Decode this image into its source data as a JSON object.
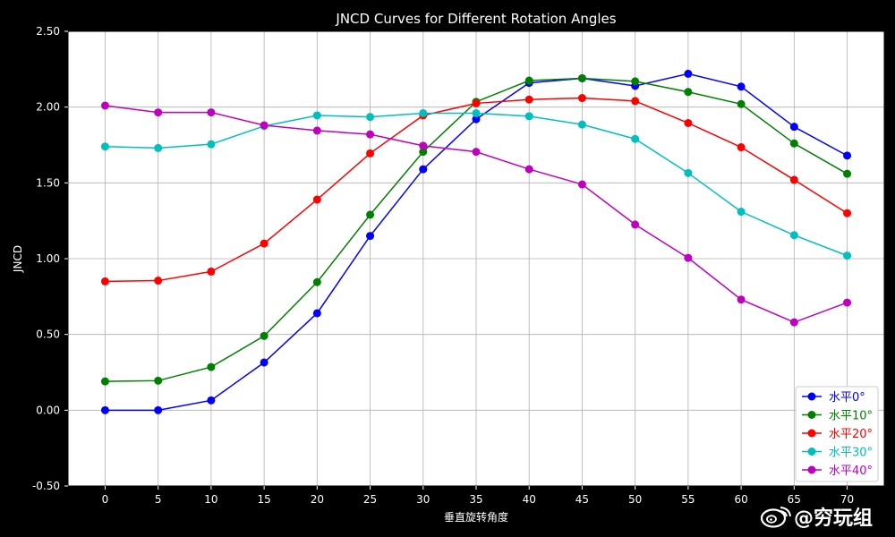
{
  "chart_data": {
    "type": "line",
    "title": "JNCD Curves for Different Rotation Angles",
    "xlabel": "垂直旋转角度",
    "ylabel": "JNCD",
    "x": [
      0,
      5,
      10,
      15,
      20,
      25,
      30,
      35,
      40,
      45,
      50,
      55,
      60,
      65,
      70
    ],
    "xlim": [
      -3.5,
      73.5
    ],
    "ylim": [
      -0.5,
      2.5
    ],
    "x_ticks": [
      "0",
      "5",
      "10",
      "15",
      "20",
      "25",
      "30",
      "35",
      "40",
      "45",
      "50",
      "55",
      "60",
      "65",
      "70"
    ],
    "y_ticks": [
      "-0.50",
      "0.00",
      "0.50",
      "1.00",
      "1.50",
      "2.00",
      "2.50"
    ],
    "grid": true,
    "legend_position": "bottom-right",
    "series": [
      {
        "name": "水平0°",
        "color": "#0000ff",
        "values": [
          0.0,
          0.0,
          0.065,
          0.315,
          0.64,
          1.15,
          1.59,
          1.92,
          2.16,
          2.19,
          2.14,
          2.22,
          2.135,
          1.87,
          1.68
        ]
      },
      {
        "name": "水平10°",
        "color": "#008000",
        "values": [
          0.19,
          0.195,
          0.285,
          0.49,
          0.845,
          1.29,
          1.705,
          2.035,
          2.175,
          2.19,
          2.17,
          2.1,
          2.02,
          1.76,
          1.56
        ]
      },
      {
        "name": "水平20°",
        "color": "#ff0000",
        "values": [
          0.85,
          0.855,
          0.915,
          1.1,
          1.39,
          1.695,
          1.945,
          2.025,
          2.05,
          2.06,
          2.04,
          1.895,
          1.735,
          1.52,
          1.3
        ]
      },
      {
        "name": "水平30°",
        "color": "#00bfbf",
        "values": [
          1.74,
          1.73,
          1.755,
          1.875,
          1.945,
          1.935,
          1.96,
          1.96,
          1.94,
          1.885,
          1.79,
          1.565,
          1.31,
          1.155,
          1.02
        ]
      },
      {
        "name": "水平40°",
        "color": "#bf00bf",
        "values": [
          2.01,
          1.965,
          1.965,
          1.88,
          1.845,
          1.82,
          1.745,
          1.705,
          1.59,
          1.49,
          1.225,
          1.005,
          0.73,
          0.58,
          0.71
        ]
      }
    ]
  },
  "watermark": {
    "text": "@穷玩组",
    "icon": "weibo-icon"
  }
}
